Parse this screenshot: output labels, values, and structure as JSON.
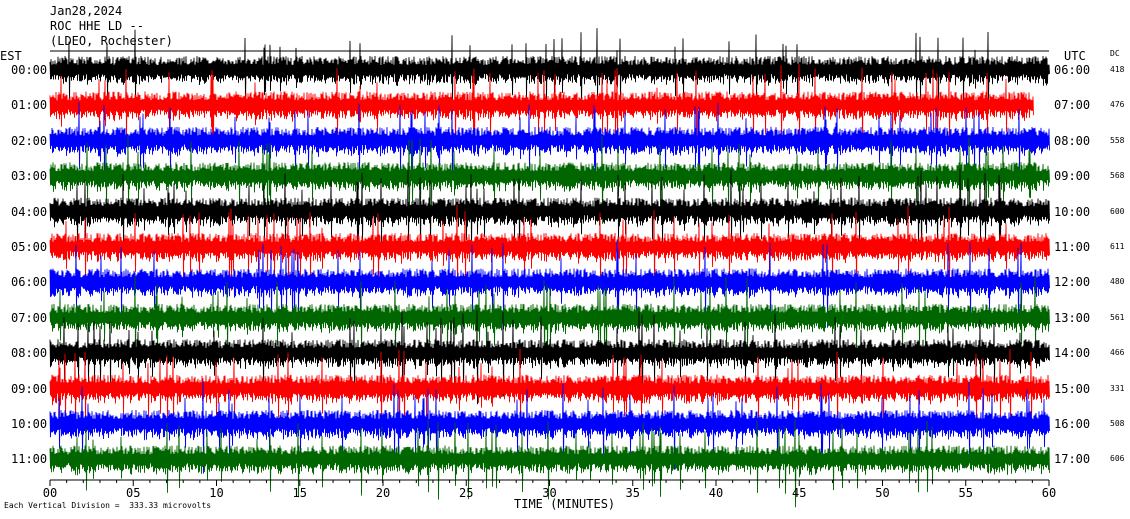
{
  "header": {
    "date": "Jan28,2024",
    "station": "ROC HHE LD --",
    "network": "(LDEO, Rochester)"
  },
  "left_tz": "EST",
  "right_tz": "UTC",
  "dc_header": "DC",
  "footer": "Each Vertical Division =  333.33 microvolts",
  "chart_data": {
    "type": "line",
    "xlabel": "TIME (MINUTES)",
    "xlim": [
      0,
      60
    ],
    "x_ticks": [
      "00",
      "05",
      "10",
      "15",
      "20",
      "25",
      "30",
      "35",
      "40",
      "45",
      "50",
      "55",
      "60"
    ],
    "trace_colors": [
      "#000000",
      "#ff0000",
      "#0000ff",
      "#006600"
    ],
    "rows": [
      {
        "est": "00:00",
        "utc": "06:00",
        "dc": "418"
      },
      {
        "est": "01:00",
        "utc": "07:00",
        "dc": "476"
      },
      {
        "est": "02:00",
        "utc": "08:00",
        "dc": "558"
      },
      {
        "est": "03:00",
        "utc": "09:00",
        "dc": "568"
      },
      {
        "est": "04:00",
        "utc": "10:00",
        "dc": "600"
      },
      {
        "est": "05:00",
        "utc": "11:00",
        "dc": "611"
      },
      {
        "est": "06:00",
        "utc": "12:00",
        "dc": "480"
      },
      {
        "est": "07:00",
        "utc": "13:00",
        "dc": "561"
      },
      {
        "est": "08:00",
        "utc": "14:00",
        "dc": "466"
      },
      {
        "est": "09:00",
        "utc": "15:00",
        "dc": "331"
      },
      {
        "est": "10:00",
        "utc": "16:00",
        "dc": "508"
      },
      {
        "est": "11:00",
        "utc": "17:00",
        "dc": "606"
      }
    ]
  }
}
